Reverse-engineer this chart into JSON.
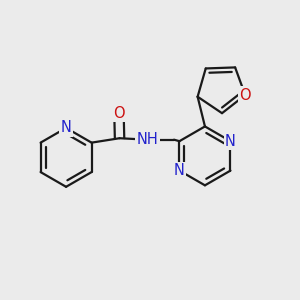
{
  "bg_color": "#ebebeb",
  "bond_color": "#1a1a1a",
  "N_color": "#2222cc",
  "O_color": "#cc1111",
  "line_width": 1.6,
  "font_size_atom": 10.5,
  "xlim": [
    0,
    10
  ],
  "ylim": [
    0,
    10
  ]
}
